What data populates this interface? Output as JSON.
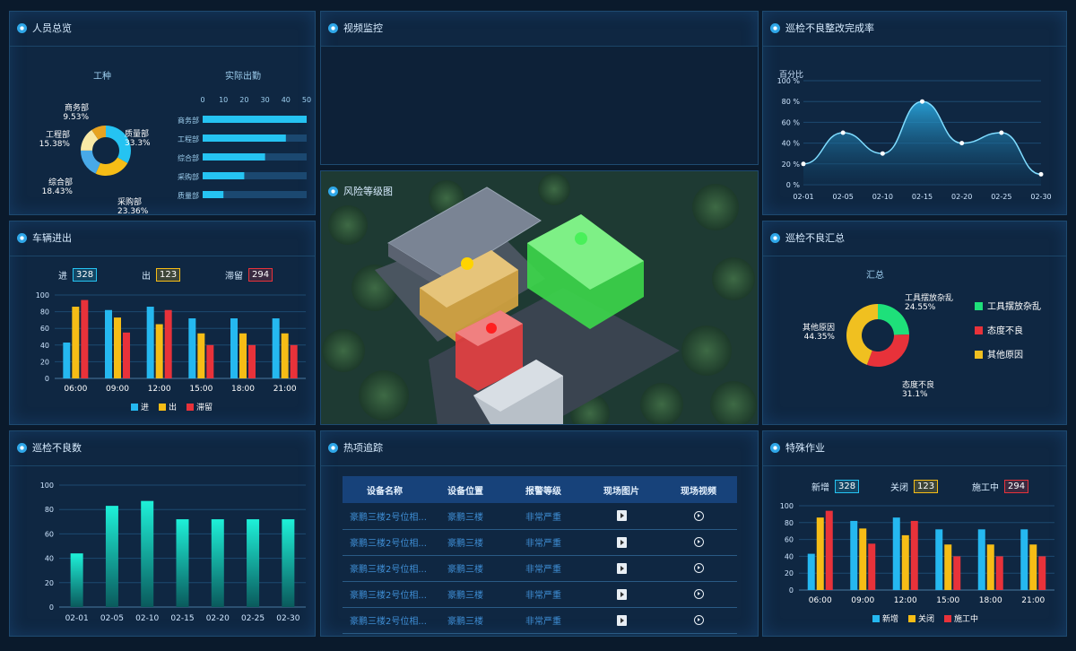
{
  "panels": {
    "personnel": "人员总览",
    "video": "视频监控",
    "rect_rate": "巡检不良整改完成率",
    "vehicles": "车辆进出",
    "risk_map": "风险等级图",
    "defect_summary": "巡检不良汇总",
    "defect_count": "巡检不良数",
    "hot_track": "热项追踪",
    "special_ops": "特殊作业"
  },
  "personnel": {
    "donut_title": "工种",
    "bar_title": "实际出勤",
    "slices": [
      {
        "name": "质量部",
        "pct": "33.3%",
        "value": 33.3,
        "color": "#25c3f2"
      },
      {
        "name": "采购部",
        "pct": "23.36%",
        "value": 23.36,
        "color": "#f6bd16"
      },
      {
        "name": "综合部",
        "pct": "18.43%",
        "value": 18.43,
        "color": "#48a9e8"
      },
      {
        "name": "工程部",
        "pct": "15.38%",
        "value": 15.38,
        "color": "#f9e9a6"
      },
      {
        "name": "商务部",
        "pct": "9.53%",
        "value": 9.53,
        "color": "#e7a321"
      }
    ],
    "bars": {
      "ticks": [
        "0",
        "10",
        "20",
        "30",
        "40",
        "50"
      ],
      "categories": [
        "商务部",
        "工程部",
        "综合部",
        "采购部",
        "质量部"
      ],
      "values": [
        50,
        40,
        30,
        20,
        10
      ]
    }
  },
  "rect_rate_chart": {
    "ylabel": "百分比",
    "yticks": [
      "100 %",
      "80 %",
      "60 %",
      "40 %",
      "20 %",
      "0 %"
    ],
    "x": [
      "02-01",
      "02-05",
      "02-10",
      "02-15",
      "02-20",
      "02-25",
      "02-30"
    ],
    "values": [
      20,
      50,
      30,
      80,
      40,
      50,
      10
    ]
  },
  "vehicles": {
    "badges": [
      {
        "label": "进",
        "value": "328",
        "color": "#25c3f2"
      },
      {
        "label": "出",
        "value": "123",
        "color": "#f6bd16"
      },
      {
        "label": "滞留",
        "value": "294",
        "color": "#e8323a"
      }
    ],
    "chart": {
      "yticks": [
        "100",
        "80",
        "60",
        "40",
        "20",
        "0"
      ],
      "categories": [
        "06:00",
        "09:00",
        "12:00",
        "15:00",
        "18:00",
        "21:00"
      ],
      "series": [
        {
          "name": "进",
          "values": [
            43,
            82,
            86,
            72,
            72,
            72
          ],
          "color": "#25b8f0"
        },
        {
          "name": "出",
          "values": [
            86,
            73,
            65,
            54,
            54,
            54
          ],
          "color": "#f6bd16"
        },
        {
          "name": "滞留",
          "values": [
            94,
            55,
            82,
            40,
            40,
            40
          ],
          "color": "#e8323a"
        }
      ]
    }
  },
  "defect_summary": {
    "title": "汇总",
    "slices": [
      {
        "name": "工具摆放杂乱",
        "pct": "24.55%",
        "value": 24.55,
        "color": "#1ee07a"
      },
      {
        "name": "态度不良",
        "pct": "31.1%",
        "value": 31.1,
        "color": "#e8323a"
      },
      {
        "name": "其他原因",
        "pct": "44.35%",
        "value": 44.35,
        "color": "#f0c020"
      }
    ]
  },
  "defect_count": {
    "yticks": [
      "100",
      "80",
      "60",
      "40",
      "20",
      "0"
    ],
    "x": [
      "02-01",
      "02-05",
      "02-10",
      "02-15",
      "02-20",
      "02-25",
      "02-30"
    ],
    "values": [
      44,
      83,
      87,
      72,
      72,
      72,
      72
    ]
  },
  "hot_track": {
    "headers": [
      "设备名称",
      "设备位置",
      "报警等级",
      "现场图片",
      "现场视频"
    ],
    "rows": [
      {
        "name": "豪鹏三楼2号位相...",
        "loc": "豪鹏三楼",
        "level": "非常严重"
      },
      {
        "name": "豪鹏三楼2号位相...",
        "loc": "豪鹏三楼",
        "level": "非常严重"
      },
      {
        "name": "豪鹏三楼2号位相...",
        "loc": "豪鹏三楼",
        "level": "非常严重"
      },
      {
        "name": "豪鹏三楼2号位相...",
        "loc": "豪鹏三楼",
        "level": "非常严重"
      },
      {
        "name": "豪鹏三楼2号位相...",
        "loc": "豪鹏三楼",
        "level": "非常严重"
      }
    ]
  },
  "special_ops": {
    "badges": [
      {
        "label": "新增",
        "value": "328",
        "color": "#25c3f2"
      },
      {
        "label": "关闭",
        "value": "123",
        "color": "#f6bd16"
      },
      {
        "label": "施工中",
        "value": "294",
        "color": "#e8323a"
      }
    ],
    "chart": {
      "yticks": [
        "100",
        "80",
        "60",
        "40",
        "20",
        "0"
      ],
      "categories": [
        "06:00",
        "09:00",
        "12:00",
        "15:00",
        "18:00",
        "21:00"
      ],
      "series": [
        {
          "name": "新增",
          "values": [
            43,
            82,
            86,
            72,
            72,
            72
          ],
          "color": "#25b8f0"
        },
        {
          "name": "关闭",
          "values": [
            86,
            73,
            65,
            54,
            54,
            54
          ],
          "color": "#f6bd16"
        },
        {
          "name": "施工中",
          "values": [
            94,
            55,
            82,
            40,
            40,
            40
          ],
          "color": "#e8323a"
        }
      ]
    }
  }
}
